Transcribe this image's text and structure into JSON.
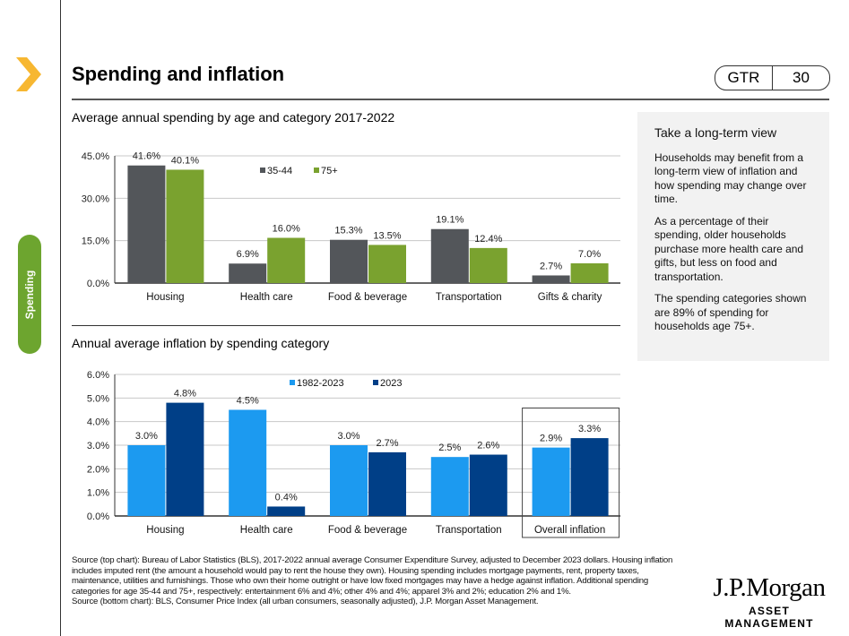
{
  "header": {
    "title": "Spending and inflation",
    "code": "GTR",
    "page": "30"
  },
  "side_tab": "Spending",
  "panel": {
    "heading": "Take a long-term view",
    "paragraphs": [
      "Households may benefit from a long-term view of inflation and how spending may change over time.",
      "As a percentage of their spending, older households purchase more health care and gifts, but less on food and transportation.",
      "The spending categories shown are 89% of spending for households age 75+."
    ]
  },
  "footnote": {
    "line1": "Source (top chart): Bureau of Labor Statistics (BLS), 2017-2022 annual average Consumer Expenditure Survey, adjusted to December 2023 dollars. Housing inflation includes imputed rent (the amount a household would pay to rent the house they own). Housing spending includes mortgage payments, rent, property taxes, maintenance, utilities and furnishings. Those who own their home outright or have low fixed mortgages may have a hedge against inflation. Additional spending categories for age 35-44 and 75+, respectively: entertainment 6% and 4%; other 4% and 4%; apparel 3% and 2%; education 2% and 1%.",
    "line2": "Source (bottom chart): BLS, Consumer Price Index (all urban consumers, seasonally adjusted), J.P. Morgan Asset Management."
  },
  "logo": {
    "name": "J.P.Morgan",
    "sub": "ASSET MANAGEMENT"
  },
  "colors": {
    "accent": "#f7b731",
    "tab": "#6da52f",
    "gray": "#53565a",
    "green": "#7aa22f",
    "light_blue": "#1c9af0",
    "navy": "#003f87"
  },
  "chart_data": [
    {
      "type": "bar",
      "title": "Average annual spending by age and category 2017-2022",
      "categories": [
        "Housing",
        "Health care",
        "Food & beverage",
        "Transportation",
        "Gifts & charity"
      ],
      "series": [
        {
          "name": "35-44",
          "values": [
            41.6,
            6.9,
            15.3,
            19.1,
            2.7
          ],
          "color": "#53565a"
        },
        {
          "name": "75+",
          "values": [
            40.1,
            16.0,
            13.5,
            12.4,
            7.0
          ],
          "color": "#7aa22f"
        }
      ],
      "yticks": [
        "0.0%",
        "15.0%",
        "30.0%",
        "45.0%"
      ],
      "ylim": [
        0,
        45
      ],
      "ystep": 15,
      "grid": true,
      "legend": "top-center"
    },
    {
      "type": "bar",
      "title": "Annual average inflation by spending category",
      "categories": [
        "Housing",
        "Health care",
        "Food & beverage",
        "Transportation",
        "Overall inflation"
      ],
      "series": [
        {
          "name": "1982-2023",
          "values": [
            3.0,
            4.5,
            3.0,
            2.5,
            2.9
          ],
          "color": "#1c9af0"
        },
        {
          "name": "2023",
          "values": [
            4.8,
            0.4,
            2.7,
            2.6,
            3.3
          ],
          "color": "#003f87"
        }
      ],
      "yticks": [
        "0.0%",
        "1.0%",
        "2.0%",
        "3.0%",
        "4.0%",
        "5.0%",
        "6.0%"
      ],
      "ylim": [
        0,
        6
      ],
      "ystep": 1,
      "grid": true,
      "legend": "top-center",
      "highlighted_category": "Overall inflation"
    }
  ]
}
